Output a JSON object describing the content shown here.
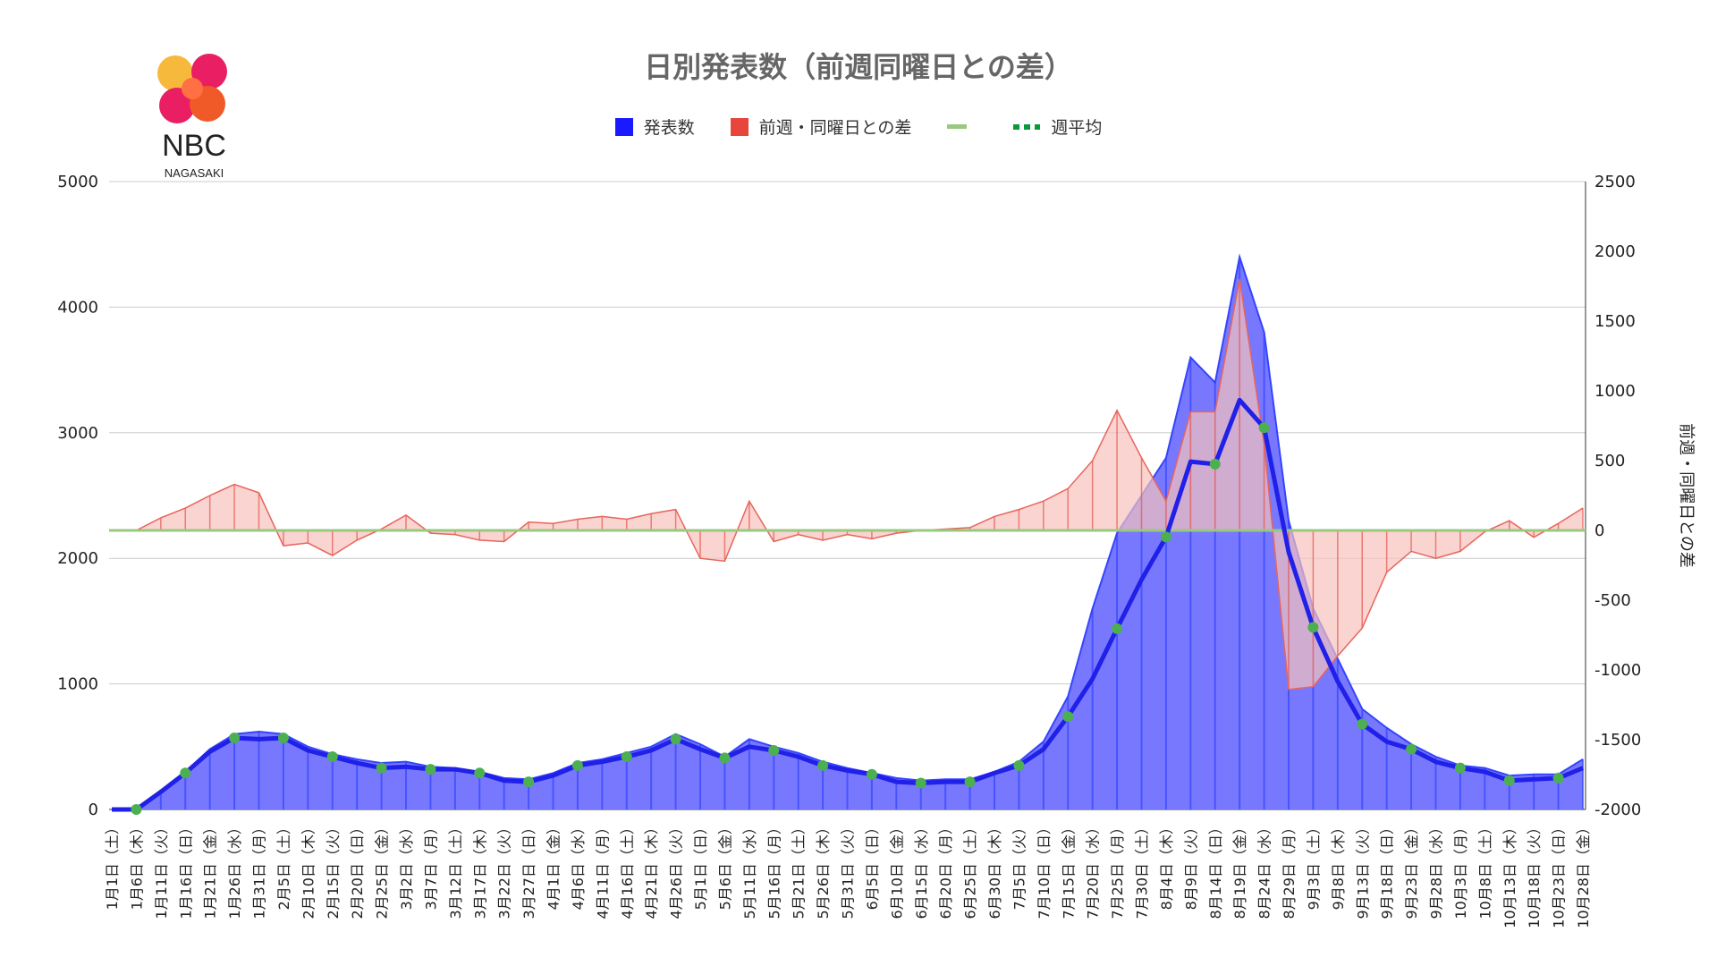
{
  "logo": {
    "text": "NBC",
    "subtext": "NAGASAKI"
  },
  "chart_data": {
    "type": "bar+line",
    "title": "日別発表数（前週同曜日との差）",
    "legend": [
      "発表数",
      "前週・同曜日との差",
      "",
      "週平均"
    ],
    "colors": {
      "count": "#3344ff",
      "countFill": "#7878ff",
      "diff": "#e8645a",
      "diffFill": "#f7c2bd",
      "zero": "#98c97e",
      "avg": "#2020e8",
      "avgDot": "#4caf50"
    },
    "left_axis": {
      "range": [
        0,
        5000
      ],
      "ticks": [
        0,
        1000,
        2000,
        3000,
        4000,
        5000
      ]
    },
    "right_axis": {
      "label": "前週・同曜日との差",
      "range": [
        -2000,
        2500
      ],
      "ticks": [
        -2000,
        -1500,
        -1000,
        -500,
        0,
        500,
        1000,
        1500,
        2000,
        2500
      ]
    },
    "x_tick_labels": [
      "1月1日（土）",
      "1月6日（木）",
      "1月11日（火）",
      "1月16日（日）",
      "1月21日（金）",
      "1月26日（水）",
      "1月31日（月）",
      "2月5日（土）",
      "2月10日（木）",
      "2月15日（火）",
      "2月20日（日）",
      "2月25日（金）",
      "3月2日（水）",
      "3月7日（月）",
      "3月12日（土）",
      "3月17日（木）",
      "3月22日（火）",
      "3月27日（日）",
      "4月1日（金）",
      "4月6日（水）",
      "4月11日（月）",
      "4月16日（土）",
      "4月21日（木）",
      "4月26日（火）",
      "5月1日（日）",
      "5月6日（金）",
      "5月11日（水）",
      "5月16日（月）",
      "5月21日（土）",
      "5月26日（木）",
      "5月31日（火）",
      "6月5日（日）",
      "6月10日（金）",
      "6月15日（水）",
      "6月20日（月）",
      "6月25日（土）",
      "6月30日（木）",
      "7月5日（火）",
      "7月10日（日）",
      "7月15日（金）",
      "7月20日（水）",
      "7月25日（月）",
      "7月30日（土）",
      "8月4日（木）",
      "8月9日（火）",
      "8月14日（日）",
      "8月19日（金）",
      "8月24日（水）",
      "8月29日（月）",
      "9月3日（土）",
      "9月8日（木）",
      "9月13日（火）",
      "9月18日（日）",
      "9月23日（金）",
      "9月28日（水）",
      "10月3日（月）",
      "10月8日（土）",
      "10月13日（木）",
      "10月18日（火）",
      "10月23日（日）",
      "10月28日（金）"
    ],
    "weekly_average": [
      0,
      0,
      140,
      290,
      460,
      570,
      560,
      570,
      470,
      420,
      370,
      330,
      340,
      320,
      320,
      290,
      230,
      220,
      270,
      350,
      380,
      420,
      470,
      560,
      480,
      410,
      500,
      470,
      420,
      350,
      310,
      280,
      220,
      210,
      220,
      220,
      290,
      350,
      480,
      740,
      1040,
      1440,
      1830,
      2170,
      2770,
      2750,
      3260,
      3040,
      2050,
      1450,
      1020,
      680,
      540,
      480,
      380,
      330,
      300,
      230,
      240,
      250,
      330
    ],
    "daily_count": [
      0,
      0,
      150,
      300,
      480,
      600,
      620,
      600,
      500,
      440,
      400,
      370,
      380,
      340,
      330,
      300,
      250,
      240,
      290,
      370,
      400,
      450,
      500,
      600,
      520,
      420,
      560,
      500,
      450,
      380,
      330,
      290,
      250,
      230,
      240,
      240,
      300,
      380,
      540,
      900,
      1600,
      2200,
      2500,
      2800,
      3600,
      3400,
      4400,
      3800,
      2300,
      1600,
      1200,
      800,
      650,
      520,
      420,
      350,
      330,
      270,
      280,
      280,
      400
    ],
    "daily_diff": [
      0,
      0,
      90,
      160,
      250,
      330,
      270,
      -110,
      -90,
      -180,
      -70,
      10,
      110,
      -20,
      -30,
      -70,
      -80,
      60,
      50,
      80,
      100,
      80,
      120,
      150,
      -200,
      -220,
      210,
      -80,
      -30,
      -70,
      -30,
      -60,
      -20,
      0,
      10,
      20,
      100,
      150,
      210,
      300,
      500,
      860,
      520,
      210,
      850,
      850,
      1800,
      620,
      -1140,
      -1120,
      -900,
      -700,
      -300,
      -150,
      -200,
      -150,
      -10,
      70,
      -50,
      50,
      160
    ]
  }
}
